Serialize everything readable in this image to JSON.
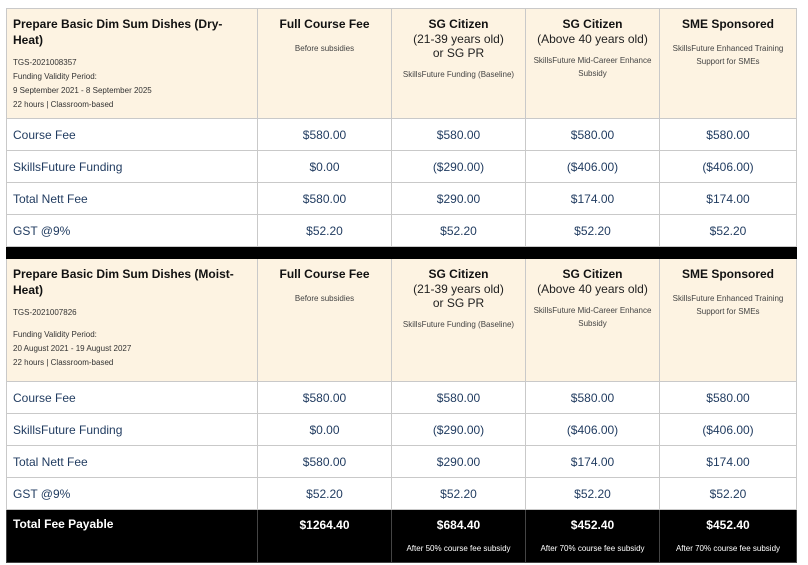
{
  "columns": [
    {
      "title": "Full Course Fee",
      "sub1": "",
      "sub2": "",
      "note": "Before subsidies"
    },
    {
      "title": "SG Citizen",
      "sub1": "(21-39 years old)",
      "sub2": "or SG PR",
      "note": "SkillsFuture Funding (Baseline)"
    },
    {
      "title": "SG Citizen",
      "sub1": "(Above 40 years old)",
      "sub2": "",
      "note": "SkillsFuture Mid-Career Enhance Subsidy"
    },
    {
      "title": "SME Sponsored",
      "sub1": "",
      "sub2": "",
      "note": "SkillsFuture Enhanced Training Support for SMEs"
    }
  ],
  "course1": {
    "title": "Prepare Basic Dim Sum Dishes (Dry-Heat)",
    "code": "TGS-2021008357",
    "validity_label": "Funding Validity Period:",
    "validity": "9 September 2021 - 8 September 2025",
    "duration": "22 hours | Classroom-based",
    "rows": [
      {
        "label": "Course Fee",
        "values": [
          "$580.00",
          "$580.00",
          "$580.00",
          "$580.00"
        ]
      },
      {
        "label": "SkillsFuture Funding",
        "values": [
          "$0.00",
          "($290.00)",
          "($406.00)",
          "($406.00)"
        ]
      },
      {
        "label": "Total Nett Fee",
        "values": [
          "$580.00",
          "$290.00",
          "$174.00",
          "$174.00"
        ]
      },
      {
        "label": "GST @9%",
        "values": [
          "$52.20",
          "$52.20",
          "$52.20",
          "$52.20"
        ]
      }
    ]
  },
  "course2": {
    "title": "Prepare Basic Dim Sum Dishes (Moist-Heat)",
    "code": "TGS-2021007826",
    "validity_label": "Funding Validity Period:",
    "validity": "20 August 2021 - 19 August 2027",
    "duration": "22 hours | Classroom-based",
    "rows": [
      {
        "label": "Course Fee",
        "values": [
          "$580.00",
          "$580.00",
          "$580.00",
          "$580.00"
        ]
      },
      {
        "label": "SkillsFuture Funding",
        "values": [
          "$0.00",
          "($290.00)",
          "($406.00)",
          "($406.00)"
        ]
      },
      {
        "label": "Total Nett Fee",
        "values": [
          "$580.00",
          "$290.00",
          "$174.00",
          "$174.00"
        ]
      },
      {
        "label": "GST @9%",
        "values": [
          "$52.20",
          "$52.20",
          "$52.20",
          "$52.20"
        ]
      }
    ]
  },
  "total": {
    "label": "Total Fee Payable",
    "values": [
      "$1264.40",
      "$684.40",
      "$452.40",
      "$452.40"
    ],
    "notes": [
      "",
      "After 50% course fee subsidy",
      "After 70% course fee subsidy",
      "After 70% course fee subsidy"
    ]
  },
  "colors": {
    "header_bg": "#fdf3e2",
    "row_text": "#1f3a5f",
    "total_bg": "#000000"
  }
}
